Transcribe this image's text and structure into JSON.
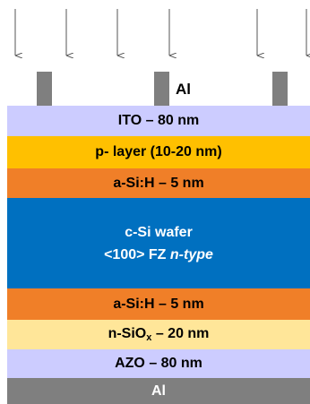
{
  "contact_label": "Al",
  "layers": {
    "ito": "ITO – 80 nm",
    "p_layer": "p- layer (10-20 nm)",
    "asi_top": "a-Si:H – 5 nm",
    "wafer_line1": "c-Si wafer",
    "wafer_line2_prefix": "<100> FZ ",
    "wafer_line2_italic": "n-type",
    "asi_bottom": "a-Si:H – 5 nm",
    "nsiox_prefix": "n-SiO",
    "nsiox_sub": "x",
    "nsiox_suffix": " – 20 nm",
    "azo": "AZO – 80 nm",
    "al_bottom": "Al"
  },
  "colors": {
    "ito": "#ccccff",
    "p_layer": "#ffc000",
    "a_si_h": "#f07f28",
    "c_si_wafer": "#0070c0",
    "n_siox": "#ffe699",
    "azo": "#ccccff",
    "aluminum": "#7f7f7f"
  },
  "icons": {
    "incident_light": "down-arrow-icon"
  }
}
